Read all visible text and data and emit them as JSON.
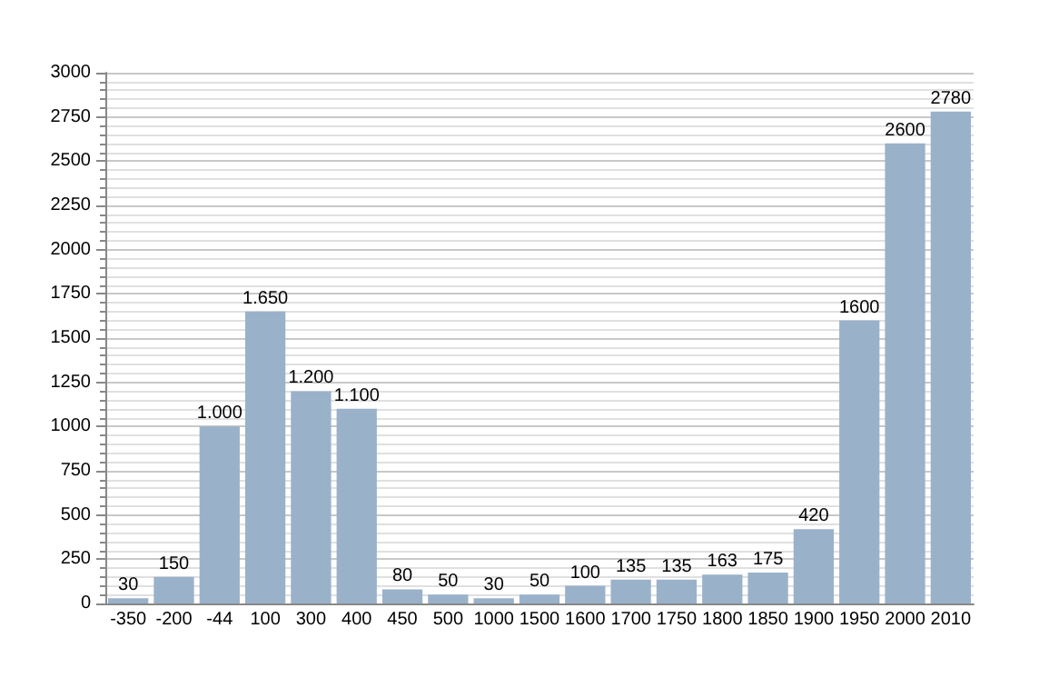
{
  "chart_data": {
    "type": "bar",
    "categories": [
      "-350",
      "-200",
      "-44",
      "100",
      "300",
      "400",
      "450",
      "500",
      "1000",
      "1500",
      "1600",
      "1700",
      "1750",
      "1800",
      "1850",
      "1900",
      "1950",
      "2000",
      "2010"
    ],
    "values": [
      30,
      150,
      1000,
      1650,
      1200,
      1100,
      80,
      50,
      30,
      50,
      100,
      135,
      135,
      163,
      175,
      420,
      1600,
      2600,
      2780
    ],
    "value_labels": [
      "30",
      "150",
      "1.000",
      "1.650",
      "1.200",
      "1.100",
      "80",
      "50",
      "30",
      "50",
      "100",
      "135",
      "135",
      "163",
      "175",
      "420",
      "1600",
      "2600",
      "2780"
    ],
    "color": "#9ab1ca",
    "ylim": [
      0,
      3000
    ],
    "yticks": [
      0,
      250,
      500,
      750,
      1000,
      1250,
      1500,
      1750,
      2000,
      2250,
      2500,
      2750,
      3000
    ],
    "grid": "y"
  }
}
